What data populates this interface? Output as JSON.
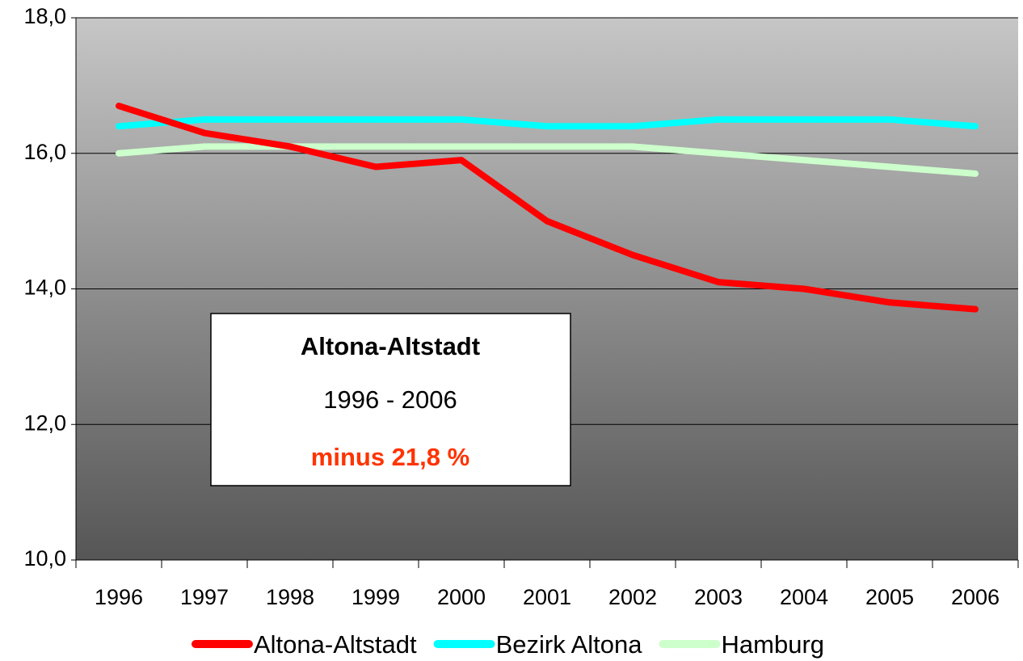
{
  "chart_data": {
    "type": "line",
    "categories": [
      "1996",
      "1997",
      "1998",
      "1999",
      "2000",
      "2001",
      "2002",
      "2003",
      "2004",
      "2005",
      "2006"
    ],
    "series": [
      {
        "name": "Altona-Altstadt",
        "color": "#ff0000",
        "values": [
          16.7,
          16.3,
          16.1,
          15.8,
          15.9,
          15.0,
          14.5,
          14.1,
          14.0,
          13.8,
          13.7
        ]
      },
      {
        "name": "Bezirk Altona",
        "color": "#00ffff",
        "values": [
          16.4,
          16.5,
          16.5,
          16.5,
          16.5,
          16.4,
          16.4,
          16.5,
          16.5,
          16.5,
          16.4
        ]
      },
      {
        "name": "Hamburg",
        "color": "#ccffcc",
        "values": [
          16.0,
          16.1,
          16.1,
          16.1,
          16.1,
          16.1,
          16.1,
          16.0,
          15.9,
          15.8,
          15.7
        ]
      }
    ],
    "ylim": [
      10,
      18
    ],
    "yticks": [
      {
        "value": 10,
        "label": "10,0"
      },
      {
        "value": 12,
        "label": "12,0"
      },
      {
        "value": 14,
        "label": "14,0"
      },
      {
        "value": 16,
        "label": "16,0"
      },
      {
        "value": 18,
        "label": "18,0"
      }
    ],
    "grid": true,
    "legend": "bottom",
    "annotation": {
      "title": "Altona-Altstadt",
      "period": "1996 - 2006",
      "change": "minus 21,8 %",
      "change_color": "#ff3300"
    }
  }
}
